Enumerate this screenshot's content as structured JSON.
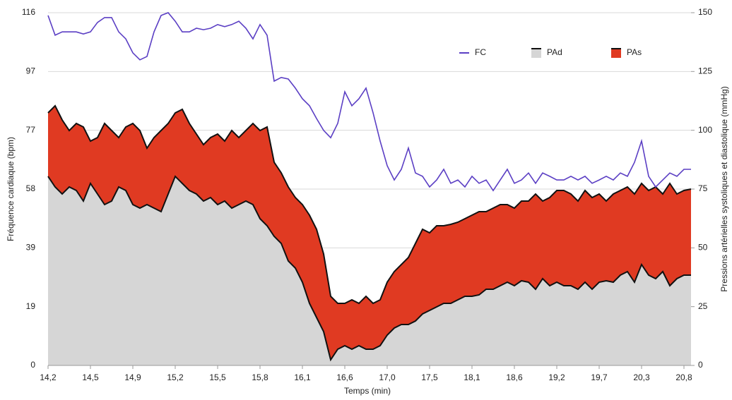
{
  "chart_data": {
    "type": "line-area",
    "xlabel": "Temps (min)",
    "ylabel": "Fréquence cardiaque (bpm)",
    "y2label": "Pressions artérielles systoliques et diastolique (mmHg)",
    "xlim": [
      0,
      91
    ],
    "xticks": [
      {
        "value": 0,
        "label": "14,2"
      },
      {
        "value": 6,
        "label": "14,5"
      },
      {
        "value": 12,
        "label": "14,9"
      },
      {
        "value": 18,
        "label": "15,2"
      },
      {
        "value": 24,
        "label": "15,5"
      },
      {
        "value": 30,
        "label": "15,8"
      },
      {
        "value": 36,
        "label": "16,1"
      },
      {
        "value": 42,
        "label": "16,6"
      },
      {
        "value": 48,
        "label": "17,0"
      },
      {
        "value": 54,
        "label": "17,5"
      },
      {
        "value": 60,
        "label": "18,1"
      },
      {
        "value": 66,
        "label": "18,6"
      },
      {
        "value": 72,
        "label": "19,2"
      },
      {
        "value": 78,
        "label": "19,7"
      },
      {
        "value": 84,
        "label": "20,3"
      },
      {
        "value": 90,
        "label": "20,8"
      }
    ],
    "ylim": [
      0,
      116
    ],
    "yticks": [
      0,
      {
        "value": 19.33,
        "label": "19"
      },
      {
        "value": 38.67,
        "label": "39"
      },
      58,
      {
        "value": 77.33,
        "label": "77"
      },
      {
        "value": 96.67,
        "label": "97"
      },
      116
    ],
    "y2lim": [
      0,
      150
    ],
    "y2ticks": [
      0,
      25,
      50,
      75,
      100,
      125,
      150
    ],
    "grid": true,
    "legend": "top-right",
    "series": [
      {
        "name": "FC",
        "color": "#5b3fc4",
        "kind": "line",
        "values": [
          115.1,
          108.6,
          109.7,
          109.7,
          109.7,
          109.0,
          109.7,
          112.8,
          114.4,
          114.4,
          109.7,
          107.4,
          102.8,
          100.5,
          101.6,
          109.7,
          115.1,
          116.0,
          113.2,
          109.7,
          109.7,
          110.9,
          110.4,
          110.9,
          112.1,
          111.4,
          112.1,
          113.2,
          110.9,
          107.4,
          112.1,
          108.6,
          93.5,
          94.7,
          94.2,
          91.2,
          87.7,
          85.4,
          81.2,
          77.3,
          74.9,
          79.6,
          90.0,
          85.4,
          87.7,
          91.2,
          83.1,
          73.8,
          65.7,
          61.0,
          64.5,
          71.5,
          63.3,
          62.2,
          58.7,
          61.0,
          64.5,
          59.9,
          61.0,
          58.7,
          62.2,
          59.9,
          61.0,
          57.5,
          61.0,
          64.5,
          59.9,
          61.0,
          63.3,
          59.9,
          63.3,
          62.2,
          61.0,
          61.0,
          62.2,
          61.0,
          62.2,
          59.9,
          61.0,
          62.2,
          61.0,
          63.3,
          62.2,
          66.8,
          73.8,
          62.2,
          58.7,
          61.0,
          63.3,
          62.2,
          64.5,
          64.5
        ]
      },
      {
        "name": "PAd",
        "color": "#d6d6d6",
        "kind": "area",
        "axis": "y2",
        "values": [
          80.4,
          75.9,
          72.9,
          75.9,
          74.4,
          69.9,
          77.4,
          72.9,
          68.4,
          69.9,
          75.9,
          74.4,
          68.4,
          66.9,
          68.4,
          66.9,
          65.4,
          72.9,
          80.4,
          77.4,
          74.4,
          72.9,
          69.9,
          71.4,
          68.4,
          69.9,
          66.9,
          68.4,
          69.9,
          68.4,
          62.4,
          59.4,
          54.9,
          51.9,
          44.4,
          41.4,
          35.4,
          26.4,
          20.4,
          14.4,
          2.4,
          6.9,
          8.4,
          6.9,
          8.4,
          6.9,
          6.9,
          8.4,
          12.9,
          15.9,
          17.4,
          17.4,
          18.9,
          21.9,
          23.4,
          24.9,
          26.4,
          26.4,
          27.9,
          29.4,
          29.4,
          30,
          32.4,
          32.4,
          33.9,
          35.4,
          33.9,
          36,
          35.4,
          32.4,
          36.9,
          33.9,
          35.4,
          33.9,
          33.9,
          32.4,
          35.4,
          32.4,
          35.4,
          36,
          35.4,
          38.4,
          39.9,
          35.4,
          42.9,
          38.4,
          36.9,
          39.9,
          33.9,
          36.9,
          38.4,
          38.4
        ]
      },
      {
        "name": "PAs",
        "color": "#e03a22",
        "kind": "area",
        "axis": "y2",
        "values": [
          107.4,
          110.4,
          104.4,
          99.9,
          102.9,
          101.4,
          95.4,
          96.9,
          102.9,
          99.9,
          96.9,
          101.4,
          102.9,
          99.9,
          92.4,
          96.9,
          99.9,
          102.9,
          107.4,
          108.9,
          102.9,
          98.4,
          93.9,
          96.9,
          98.4,
          95.4,
          99.9,
          96.9,
          99.9,
          102.9,
          99.9,
          101.4,
          86.4,
          81.9,
          75.9,
          71.4,
          68.4,
          63.9,
          57.9,
          47.4,
          29.4,
          26.4,
          26.4,
          27.9,
          26.4,
          29.4,
          26.4,
          27.9,
          35.4,
          39.9,
          42.9,
          45.9,
          51.9,
          57.9,
          56.4,
          59.4,
          59.4,
          60,
          60.9,
          62.4,
          63.9,
          65.4,
          65.4,
          66.9,
          68.4,
          68.4,
          66.9,
          69.9,
          69.9,
          72.9,
          69.9,
          71.4,
          74.4,
          74.4,
          72.9,
          69.9,
          74.4,
          71.4,
          72.9,
          69.9,
          72.9,
          74.4,
          75.9,
          72.9,
          77.4,
          74.4,
          75.9,
          72.9,
          77.4,
          72.9,
          74.4,
          75
        ]
      }
    ]
  }
}
